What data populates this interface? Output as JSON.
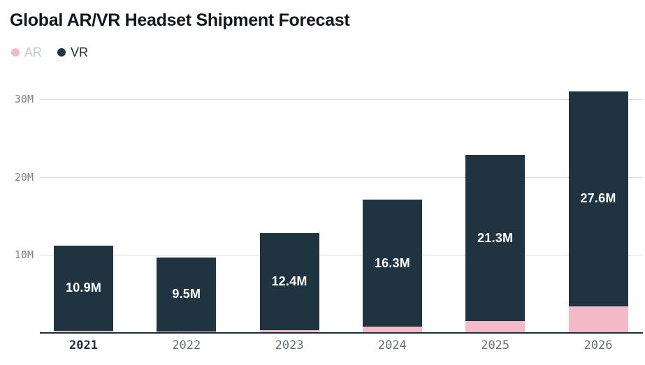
{
  "header": {
    "title": "Global AR/VR Headset Shipment Forecast"
  },
  "legend": {
    "items": [
      {
        "id": "ar",
        "label": "AR",
        "swatch_color": "#f4bac7",
        "label_color": "#c5cacd"
      },
      {
        "id": "vr",
        "label": "VR",
        "swatch_color": "#1f3440",
        "label_color": "#1d2e38"
      }
    ]
  },
  "chart_data": {
    "type": "bar",
    "stacked": true,
    "title": "Global AR/VR Headset Shipment Forecast",
    "categories": [
      "2021",
      "2022",
      "2023",
      "2024",
      "2025",
      "2026"
    ],
    "series": [
      {
        "name": "AR",
        "color": "#f4bac7",
        "values": [
          0.3,
          0.2,
          0.4,
          0.8,
          1.5,
          3.4
        ],
        "labels": [
          "",
          "",
          "",
          "",
          "",
          ""
        ]
      },
      {
        "name": "VR",
        "color": "#1f3440",
        "values": [
          10.9,
          9.5,
          12.4,
          16.3,
          21.3,
          27.6
        ],
        "labels": [
          "10.9M",
          "9.5M",
          "12.4M",
          "16.3M",
          "21.3M",
          "27.6M"
        ]
      }
    ],
    "totals": [
      11.2,
      9.7,
      12.8,
      17.1,
      22.8,
      31.0
    ],
    "unit": "M",
    "xlabel": "",
    "ylabel": "",
    "ylim": [
      0,
      31.5
    ],
    "y_ticks": [
      {
        "value": 10,
        "label": "10M"
      },
      {
        "value": 20,
        "label": "20M"
      },
      {
        "value": 30,
        "label": "30M"
      }
    ],
    "grid": true,
    "legend_position": "top-left",
    "highlighted_category": "2021",
    "value_label_color": "#ffffff",
    "gridline_color": "#d9d9d9",
    "baseline_color": "#1d2e38"
  }
}
